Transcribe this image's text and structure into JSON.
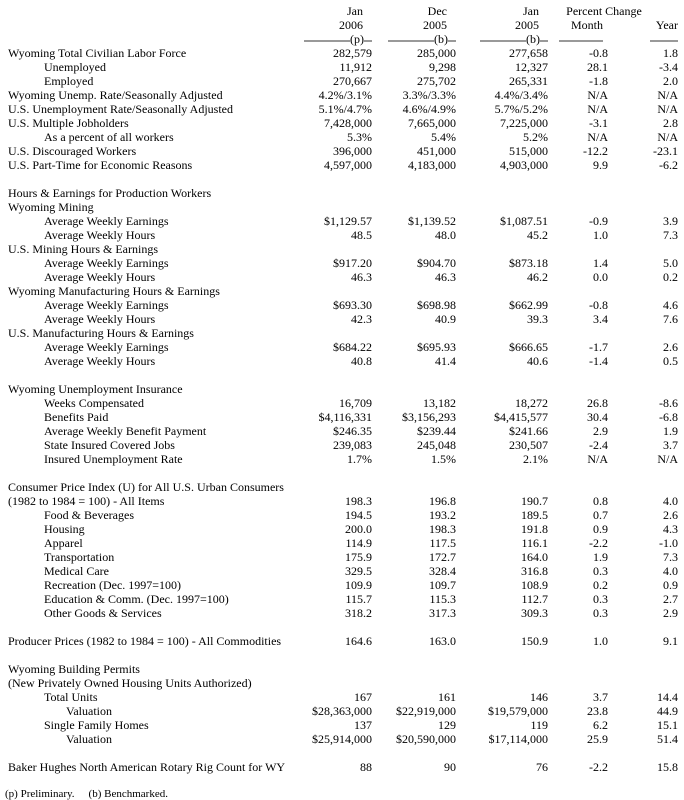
{
  "header": {
    "percent_change_label": "Percent Change",
    "month_label": "Month",
    "year_label": "Year",
    "columns": [
      {
        "line1": "Jan",
        "line2": "2006",
        "note": "(p)"
      },
      {
        "line1": "Dec",
        "line2": "2005",
        "note": "(b)"
      },
      {
        "line1": "Jan",
        "line2": "2005",
        "note": "(b)"
      }
    ]
  },
  "table": {
    "rows": [
      {
        "label": "Wyoming Total Civilian Labor Force",
        "indent": 0,
        "values": [
          "282,579",
          "285,000",
          "277,658",
          "-0.8",
          "1.8"
        ]
      },
      {
        "label": "Unemployed",
        "indent": 1,
        "values": [
          "11,912",
          "9,298",
          "12,327",
          "28.1",
          "-3.4"
        ]
      },
      {
        "label": "Employed",
        "indent": 1,
        "values": [
          "270,667",
          "275,702",
          "265,331",
          "-1.8",
          "2.0"
        ]
      },
      {
        "label": "Wyoming Unemp. Rate/Seasonally Adjusted",
        "indent": 0,
        "values": [
          "4.2%/3.1%",
          "3.3%/3.3%",
          "4.4%/3.4%",
          "N/A",
          "N/A"
        ]
      },
      {
        "label": "U.S. Unemployment Rate/Seasonally Adjusted",
        "indent": 0,
        "values": [
          "5.1%/4.7%",
          "4.6%/4.9%",
          "5.7%/5.2%",
          "N/A",
          "N/A"
        ]
      },
      {
        "label": "U.S. Multiple Jobholders",
        "indent": 0,
        "values": [
          "7,428,000",
          "7,665,000",
          "7,225,000",
          "-3.1",
          "2.8"
        ]
      },
      {
        "label": "As a percent of all workers",
        "indent": 1,
        "values": [
          "5.3%",
          "5.4%",
          "5.2%",
          "N/A",
          "N/A"
        ]
      },
      {
        "label": "U.S. Discouraged Workers",
        "indent": 0,
        "values": [
          "396,000",
          "451,000",
          "515,000",
          "-12.2",
          "-23.1"
        ]
      },
      {
        "label": "U.S. Part-Time for Economic Reasons",
        "indent": 0,
        "values": [
          "4,597,000",
          "4,183,000",
          "4,903,000",
          "9.9",
          "-6.2"
        ]
      },
      {
        "label": "",
        "indent": 0,
        "values": []
      },
      {
        "label": "Hours & Earnings for Production Workers",
        "indent": 0,
        "values": []
      },
      {
        "label": "Wyoming Mining",
        "indent": 0,
        "values": []
      },
      {
        "label": "Average Weekly Earnings",
        "indent": 1,
        "values": [
          "$1,129.57",
          "$1,139.52",
          "$1,087.51",
          "-0.9",
          "3.9"
        ]
      },
      {
        "label": "Average Weekly Hours",
        "indent": 1,
        "values": [
          "48.5",
          "48.0",
          "45.2",
          "1.0",
          "7.3"
        ]
      },
      {
        "label": "U.S. Mining Hours & Earnings",
        "indent": 0,
        "values": []
      },
      {
        "label": "Average Weekly Earnings",
        "indent": 1,
        "values": [
          "$917.20",
          "$904.70",
          "$873.18",
          "1.4",
          "5.0"
        ]
      },
      {
        "label": "Average Weekly Hours",
        "indent": 1,
        "values": [
          "46.3",
          "46.3",
          "46.2",
          "0.0",
          "0.2"
        ]
      },
      {
        "label": "Wyoming Manufacturing Hours & Earnings",
        "indent": 0,
        "values": []
      },
      {
        "label": "Average Weekly Earnings",
        "indent": 1,
        "values": [
          "$693.30",
          "$698.98",
          "$662.99",
          "-0.8",
          "4.6"
        ]
      },
      {
        "label": "Average Weekly Hours",
        "indent": 1,
        "values": [
          "42.3",
          "40.9",
          "39.3",
          "3.4",
          "7.6"
        ]
      },
      {
        "label": "U.S. Manufacturing Hours & Earnings",
        "indent": 0,
        "values": []
      },
      {
        "label": "Average Weekly Earnings",
        "indent": 1,
        "values": [
          "$684.22",
          "$695.93",
          "$666.65",
          "-1.7",
          "2.6"
        ]
      },
      {
        "label": "Average Weekly Hours",
        "indent": 1,
        "values": [
          "40.8",
          "41.4",
          "40.6",
          "-1.4",
          "0.5"
        ]
      },
      {
        "label": "",
        "indent": 0,
        "values": []
      },
      {
        "label": "Wyoming Unemployment Insurance",
        "indent": 0,
        "values": []
      },
      {
        "label": "Weeks Compensated",
        "indent": 1,
        "values": [
          "16,709",
          "13,182",
          "18,272",
          "26.8",
          "-8.6"
        ]
      },
      {
        "label": "Benefits Paid",
        "indent": 1,
        "values": [
          "$4,116,331",
          "$3,156,293",
          "$4,415,577",
          "30.4",
          "-6.8"
        ]
      },
      {
        "label": "Average Weekly Benefit Payment",
        "indent": 1,
        "values": [
          "$246.35",
          "$239.44",
          "$241.66",
          "2.9",
          "1.9"
        ]
      },
      {
        "label": "State Insured Covered Jobs",
        "indent": 1,
        "values": [
          "239,083",
          "245,048",
          "230,507",
          "-2.4",
          "3.7"
        ]
      },
      {
        "label": "Insured Unemployment Rate",
        "indent": 1,
        "values": [
          "1.7%",
          "1.5%",
          "2.1%",
          "N/A",
          "N/A"
        ]
      },
      {
        "label": "",
        "indent": 0,
        "values": []
      },
      {
        "label": "Consumer Price Index (U) for All U.S. Urban Consumers",
        "indent": 0,
        "values": []
      },
      {
        "label": "(1982 to 1984 = 100) - All Items",
        "indent": 0,
        "values": [
          "198.3",
          "196.8",
          "190.7",
          "0.8",
          "4.0"
        ]
      },
      {
        "label": "Food & Beverages",
        "indent": 1,
        "values": [
          "194.5",
          "193.2",
          "189.5",
          "0.7",
          "2.6"
        ]
      },
      {
        "label": "Housing",
        "indent": 1,
        "values": [
          "200.0",
          "198.3",
          "191.8",
          "0.9",
          "4.3"
        ]
      },
      {
        "label": "Apparel",
        "indent": 1,
        "values": [
          "114.9",
          "117.5",
          "116.1",
          "-2.2",
          "-1.0"
        ]
      },
      {
        "label": "Transportation",
        "indent": 1,
        "values": [
          "175.9",
          "172.7",
          "164.0",
          "1.9",
          "7.3"
        ]
      },
      {
        "label": "Medical Care",
        "indent": 1,
        "values": [
          "329.5",
          "328.4",
          "316.8",
          "0.3",
          "4.0"
        ]
      },
      {
        "label": "Recreation (Dec. 1997=100)",
        "indent": 1,
        "values": [
          "109.9",
          "109.7",
          "108.9",
          "0.2",
          "0.9"
        ]
      },
      {
        "label": "Education & Comm. (Dec. 1997=100)",
        "indent": 1,
        "values": [
          "115.7",
          "115.3",
          "112.7",
          "0.3",
          "2.7"
        ]
      },
      {
        "label": "Other Goods & Services",
        "indent": 1,
        "values": [
          "318.2",
          "317.3",
          "309.3",
          "0.3",
          "2.9"
        ]
      },
      {
        "label": "",
        "indent": 0,
        "values": []
      },
      {
        "label": "Producer Prices (1982 to 1984 = 100) - All Commodities",
        "indent": 0,
        "values": [
          "164.6",
          "163.0",
          "150.9",
          "1.0",
          "9.1"
        ]
      },
      {
        "label": "",
        "indent": 0,
        "values": []
      },
      {
        "label": "Wyoming Building Permits",
        "indent": 0,
        "values": []
      },
      {
        "label": "(New Privately Owned Housing Units Authorized)",
        "indent": 0,
        "values": []
      },
      {
        "label": "Total Units",
        "indent": 1,
        "values": [
          "167",
          "161",
          "146",
          "3.7",
          "14.4"
        ]
      },
      {
        "label": "Valuation",
        "indent": 2,
        "values": [
          "$28,363,000",
          "$22,919,000",
          "$19,579,000",
          "23.8",
          "44.9"
        ]
      },
      {
        "label": "Single Family Homes",
        "indent": 1,
        "values": [
          "137",
          "129",
          "119",
          "6.2",
          "15.1"
        ]
      },
      {
        "label": "Valuation",
        "indent": 2,
        "values": [
          "$25,914,000",
          "$20,590,000",
          "$17,114,000",
          "25.9",
          "51.4"
        ]
      },
      {
        "label": "",
        "indent": 0,
        "values": []
      },
      {
        "label": "Baker Hughes North American Rotary Rig Count for WY",
        "indent": 0,
        "values": [
          "88",
          "90",
          "76",
          "-2.2",
          "15.8"
        ]
      }
    ]
  },
  "footer": {
    "note_p": "(p) Preliminary.",
    "note_b": "(b) Benchmarked."
  }
}
